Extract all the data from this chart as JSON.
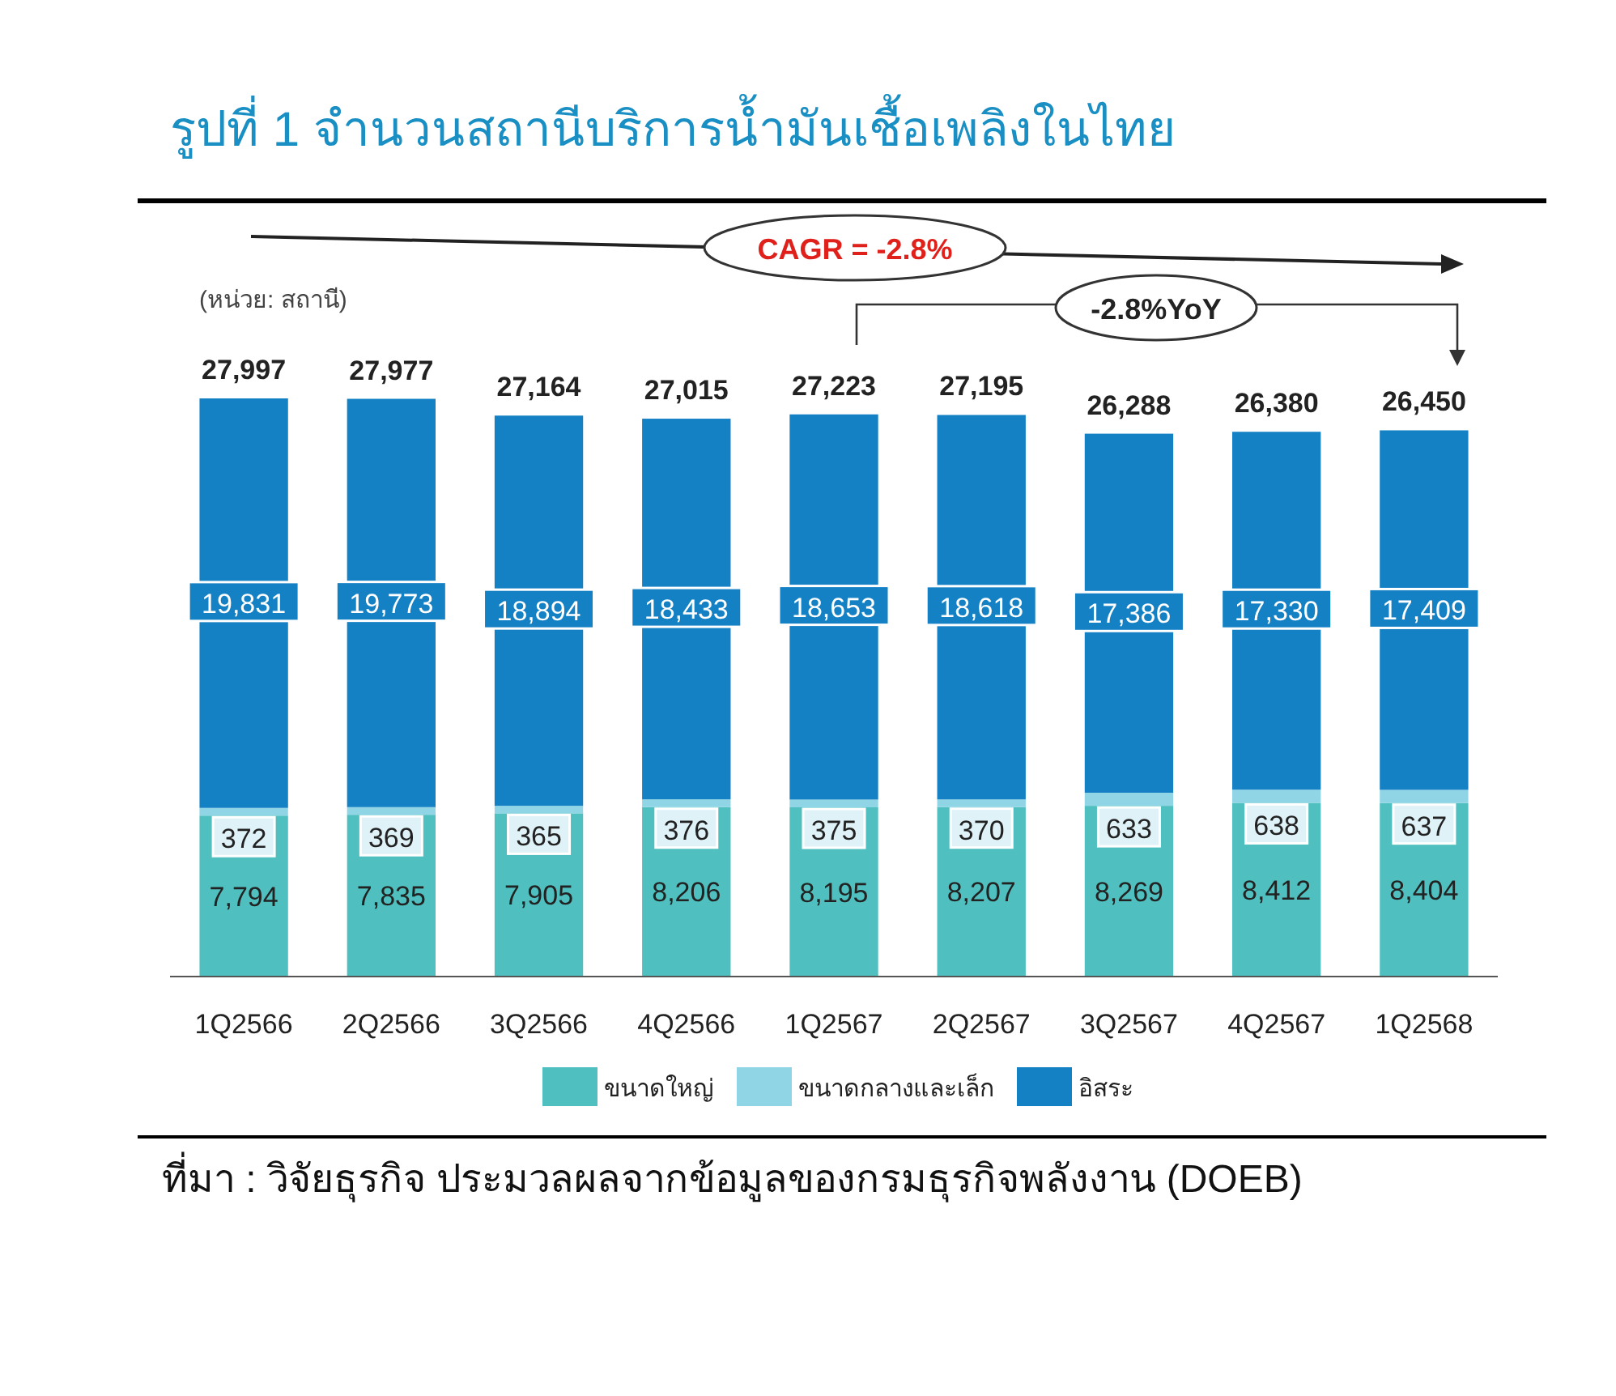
{
  "chart_data": {
    "type": "bar",
    "stacked": true,
    "legend": "bottom",
    "title": "รูปที่ 1 จำนวนสถานีบริการน้ำมันเชื้อเพลิงในไทย",
    "categories": [
      "1Q2566",
      "2Q2566",
      "3Q2566",
      "4Q2566",
      "1Q2567",
      "2Q2567",
      "3Q2567",
      "4Q2567",
      "1Q2568"
    ],
    "series": [
      {
        "name": "ขนาดใหญ่",
        "color": "#4fc0bf",
        "values": [
          7794,
          7835,
          7905,
          8206,
          8195,
          8207,
          8269,
          8412,
          8404
        ],
        "value_labels": [
          "7,794",
          "7,835",
          "7,905",
          "8,206",
          "8,195",
          "8,207",
          "8,269",
          "8,412",
          "8,404"
        ]
      },
      {
        "name": "ขนาดกลางและเล็ก",
        "color": "#8fd5e6",
        "values": [
          372,
          369,
          365,
          376,
          375,
          370,
          633,
          638,
          637
        ],
        "value_labels": [
          "372",
          "369",
          "365",
          "376",
          "375",
          "370",
          "633",
          "638",
          "637"
        ]
      },
      {
        "name": "อิสระ",
        "color": "#1581c5",
        "values": [
          19831,
          19773,
          18894,
          18433,
          18653,
          18618,
          17386,
          17330,
          17409
        ],
        "value_labels": [
          "19,831",
          "19,773",
          "18,894",
          "18,433",
          "18,653",
          "18,618",
          "17,386",
          "17,330",
          "17,409"
        ]
      }
    ],
    "totals": [
      "27,997",
      "27,977",
      "27,164",
      "27,015",
      "27,223",
      "27,195",
      "26,288",
      "26,380",
      "26,450"
    ],
    "annotations": [
      "(หน่วย: สถานี)",
      "CAGR = -2.8%",
      "-2.8%YoY",
      "ที่มา : วิจัยธุรกิจ ประมวลผลจากข้อมูลของกรมธุรกิจพลังงาน (DOEB)"
    ]
  }
}
